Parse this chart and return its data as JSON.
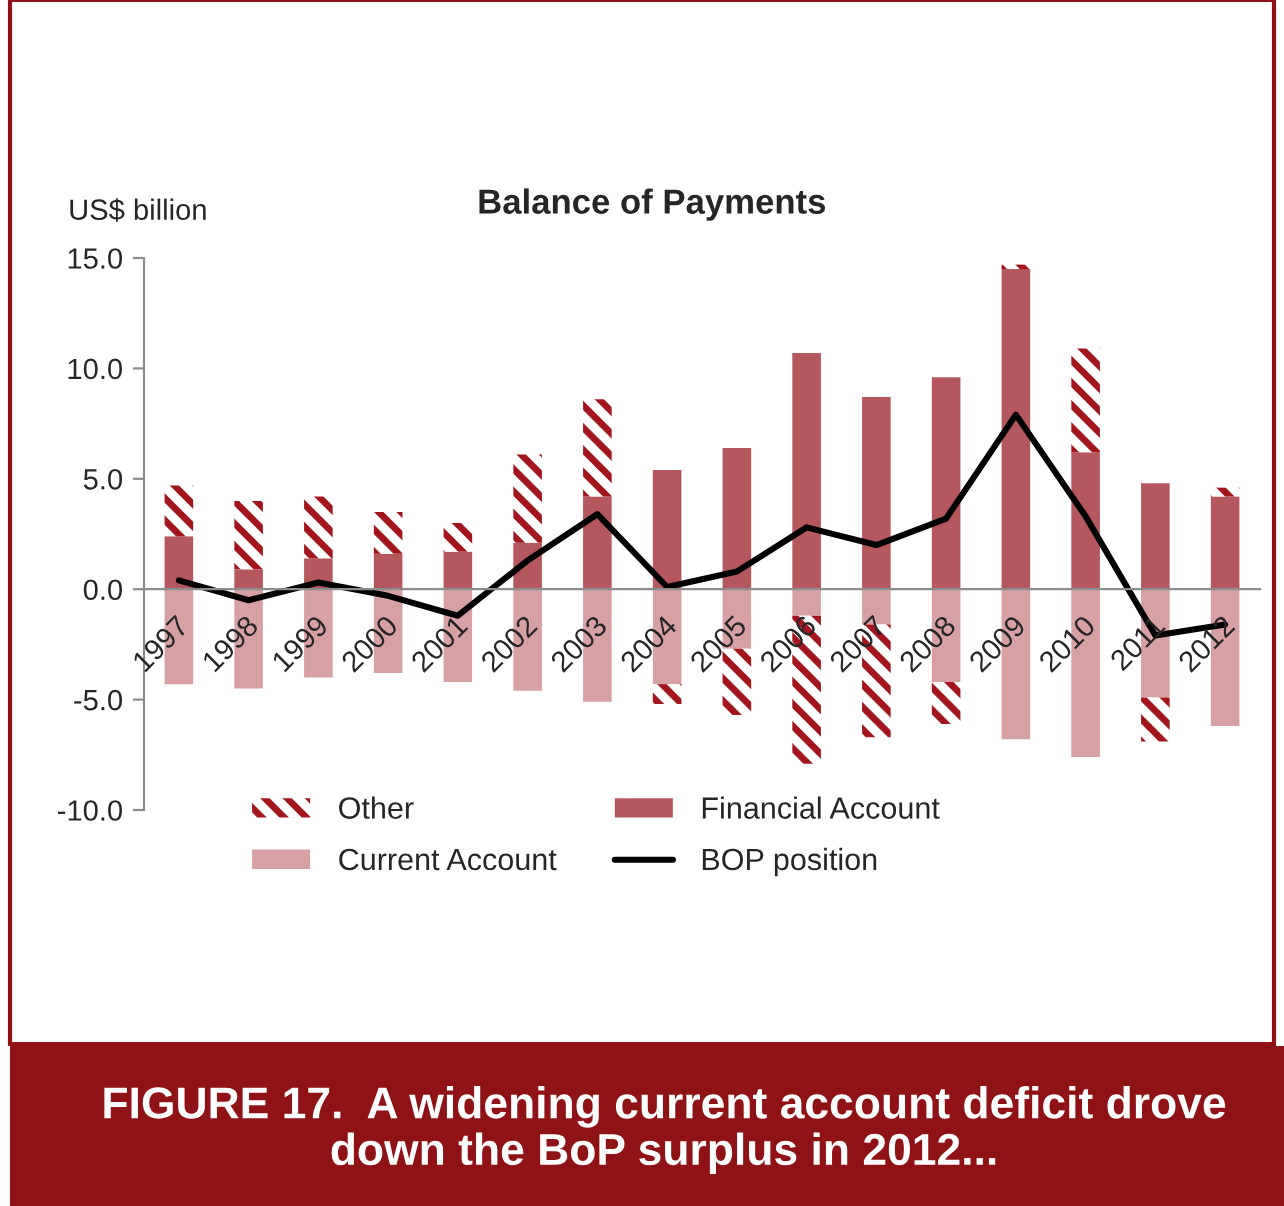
{
  "chart_data": {
    "type": "bar",
    "title": "Balance of Payments",
    "ylabel": "US$ billion",
    "categories": [
      "1997",
      "1998",
      "1999",
      "2000",
      "2001",
      "2002",
      "2003",
      "2004",
      "2005",
      "2006",
      "2007",
      "2008",
      "2009",
      "2010",
      "2011",
      "2012"
    ],
    "stacked": true,
    "series": [
      {
        "name": "Current Account",
        "color": "#d7a1a4",
        "values": [
          -4.3,
          -4.5,
          -4.0,
          -3.8,
          -4.2,
          -4.6,
          -5.1,
          -4.3,
          -2.7,
          -1.2,
          -1.6,
          -4.2,
          -6.8,
          -7.6,
          -4.9,
          -6.2
        ]
      },
      {
        "name": "Financial Account",
        "color": "#b5585d",
        "values": [
          2.4,
          0.9,
          1.4,
          1.6,
          1.7,
          2.1,
          4.2,
          5.4,
          6.4,
          10.7,
          8.7,
          9.6,
          14.5,
          6.2,
          4.8,
          4.2
        ]
      },
      {
        "name": "Other",
        "color": "#a3161e",
        "values": [
          2.3,
          3.1,
          2.8,
          1.9,
          1.3,
          4.0,
          4.4,
          -0.9,
          -3.0,
          -6.7,
          -5.1,
          -1.9,
          0.2,
          4.7,
          -2.0,
          0.4
        ]
      },
      {
        "name": "BOP position",
        "type": "line",
        "color": "#000000",
        "line_style": "solid",
        "values": [
          0.4,
          -0.5,
          0.3,
          -0.3,
          -1.2,
          1.3,
          3.4,
          0.1,
          0.8,
          2.8,
          2.0,
          3.2,
          7.9,
          3.3,
          -2.1,
          -1.6
        ]
      }
    ],
    "ylim": [
      -10,
      15
    ],
    "yticks": [
      {
        "value": -10,
        "label": "-10.0"
      },
      {
        "value": -5,
        "label": "-5.0"
      },
      {
        "value": 0,
        "label": "0.0"
      },
      {
        "value": 5,
        "label": "5.0"
      },
      {
        "value": 10,
        "label": "10.0"
      },
      {
        "value": 15,
        "label": "15.0"
      }
    ],
    "legend": "bottom",
    "annotations": [
      "FIGURE 17.  A widening current account deficit drove down the BoP surplus in 2012..."
    ]
  }
}
